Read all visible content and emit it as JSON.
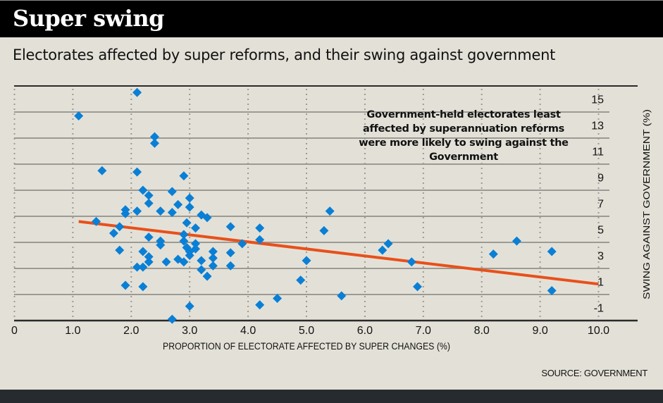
{
  "header": {
    "title": "Super swing",
    "subtitle": "Electorates affected by super reforms, and their swing against government"
  },
  "source": "SOURCE: GOVERNMENT",
  "colors": {
    "points": "#0a7fd6",
    "trend": "#e8501a",
    "background": "#e3e1d7",
    "title_band": "#000000",
    "footer_band": "#262b2f"
  },
  "chart_data": {
    "type": "scatter",
    "title": "Electorates affected by super reforms, and their swing against government",
    "xlabel": "PROPORTION OF ELECTORATE AFFECTED BY SUPER CHANGES (%)",
    "ylabel": "SWING AGAINST GOVERNMENT (%)",
    "xlim": [
      0,
      10.8
    ],
    "ylim": [
      -2,
      16
    ],
    "x_ticks": [
      0,
      1,
      2,
      3,
      4,
      5,
      6,
      7,
      8,
      9,
      10
    ],
    "x_tick_labels": [
      "0",
      "1.0",
      "2.0",
      "3.0",
      "4.0",
      "5.0",
      "6.0",
      "7.0",
      "8.0",
      "9.0",
      "10.0"
    ],
    "y_ticks": [
      15,
      13,
      11,
      9,
      7,
      5,
      3,
      1,
      -1
    ],
    "y_tick_labels": [
      "15",
      "13",
      "11",
      "9",
      "7",
      "5",
      "3",
      "1",
      "-1"
    ],
    "y_axis_position": "right",
    "grid": true,
    "annotation": "Government-held electorates least affected by superannuation reforms were more likely to swing against the Government",
    "trend_line": {
      "x": [
        1.1,
        10.0
      ],
      "y": [
        5.6,
        0.8
      ]
    },
    "points": [
      [
        1.1,
        13.7
      ],
      [
        2.1,
        15.5
      ],
      [
        1.5,
        9.5
      ],
      [
        2.1,
        9.4
      ],
      [
        2.4,
        12.1
      ],
      [
        2.4,
        11.6
      ],
      [
        2.9,
        9.1
      ],
      [
        2.2,
        8.0
      ],
      [
        2.3,
        7.6
      ],
      [
        2.3,
        7.0
      ],
      [
        2.7,
        7.9
      ],
      [
        3.0,
        7.4
      ],
      [
        3.0,
        6.7
      ],
      [
        1.9,
        6.5
      ],
      [
        1.9,
        6.2
      ],
      [
        2.1,
        6.4
      ],
      [
        2.5,
        6.4
      ],
      [
        2.7,
        6.3
      ],
      [
        2.8,
        6.9
      ],
      [
        3.2,
        6.1
      ],
      [
        3.3,
        5.9
      ],
      [
        5.4,
        6.4
      ],
      [
        1.4,
        5.6
      ],
      [
        1.8,
        5.2
      ],
      [
        1.7,
        4.7
      ],
      [
        2.95,
        5.5
      ],
      [
        3.1,
        5.1
      ],
      [
        3.7,
        5.2
      ],
      [
        4.2,
        5.1
      ],
      [
        5.3,
        4.9
      ],
      [
        2.3,
        4.4
      ],
      [
        2.5,
        4.1
      ],
      [
        2.5,
        3.8
      ],
      [
        2.9,
        4.6
      ],
      [
        2.9,
        4.1
      ],
      [
        2.95,
        3.6
      ],
      [
        3.1,
        3.9
      ],
      [
        3.1,
        3.5
      ],
      [
        3.9,
        3.9
      ],
      [
        4.2,
        4.2
      ],
      [
        1.8,
        3.4
      ],
      [
        2.2,
        3.3
      ],
      [
        2.3,
        2.9
      ],
      [
        2.3,
        2.5
      ],
      [
        2.6,
        2.5
      ],
      [
        2.8,
        2.7
      ],
      [
        2.9,
        2.5
      ],
      [
        3.0,
        3.3
      ],
      [
        3.0,
        3.0
      ],
      [
        3.2,
        2.6
      ],
      [
        3.4,
        3.3
      ],
      [
        3.4,
        2.8
      ],
      [
        3.7,
        3.2
      ],
      [
        3.7,
        2.2
      ],
      [
        2.1,
        2.1
      ],
      [
        2.2,
        2.1
      ],
      [
        3.2,
        1.9
      ],
      [
        3.4,
        2.2
      ],
      [
        3.3,
        1.4
      ],
      [
        1.9,
        0.7
      ],
      [
        2.2,
        0.6
      ],
      [
        3.0,
        -0.9
      ],
      [
        2.7,
        -1.9
      ],
      [
        4.2,
        -0.8
      ],
      [
        4.5,
        -0.3
      ],
      [
        4.9,
        1.1
      ],
      [
        5.0,
        2.6
      ],
      [
        6.3,
        3.4
      ],
      [
        6.4,
        3.9
      ],
      [
        6.8,
        2.5
      ],
      [
        6.9,
        0.6
      ],
      [
        5.6,
        -0.1
      ],
      [
        8.2,
        3.1
      ],
      [
        8.6,
        4.1
      ],
      [
        9.2,
        3.3
      ],
      [
        9.2,
        0.3
      ]
    ]
  }
}
